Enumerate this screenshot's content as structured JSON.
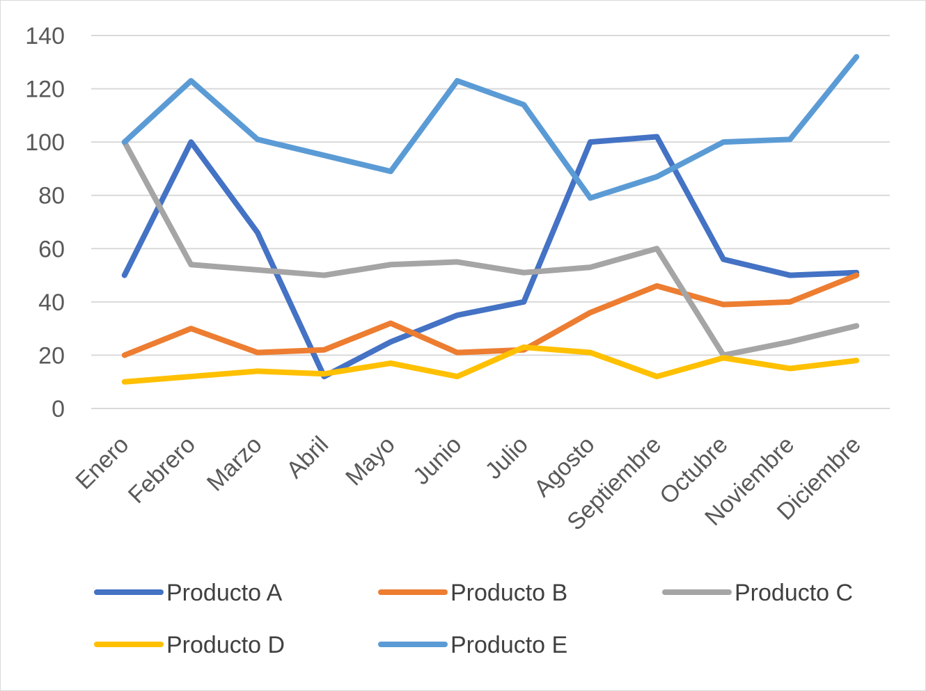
{
  "chart_data": {
    "type": "line",
    "title": "",
    "xlabel": "",
    "ylabel": "",
    "ylim": [
      0,
      140
    ],
    "yticks": [
      0,
      20,
      40,
      60,
      80,
      100,
      120,
      140
    ],
    "grid": true,
    "legend_position": "bottom",
    "categories": [
      "Enero",
      "Febrero",
      "Marzo",
      "Abril",
      "Mayo",
      "Junio",
      "Julio",
      "Agosto",
      "Septiembre",
      "Octubre",
      "Noviembre",
      "Diciembre"
    ],
    "series": [
      {
        "name": "Producto A",
        "color": "#4472C4",
        "values": [
          50,
          100,
          66,
          12,
          25,
          35,
          40,
          100,
          102,
          56,
          50,
          51
        ]
      },
      {
        "name": "Producto B",
        "color": "#ED7D31",
        "values": [
          20,
          30,
          21,
          22,
          32,
          21,
          22,
          36,
          46,
          39,
          40,
          50
        ]
      },
      {
        "name": "Producto C",
        "color": "#A5A5A5",
        "values": [
          100,
          54,
          52,
          50,
          54,
          55,
          51,
          53,
          60,
          20,
          25,
          31
        ]
      },
      {
        "name": "Producto D",
        "color": "#FFC000",
        "values": [
          10,
          12,
          14,
          13,
          17,
          12,
          23,
          21,
          12,
          19,
          15,
          18
        ]
      },
      {
        "name": "Producto E",
        "color": "#5B9BD5",
        "values": [
          100,
          123,
          101,
          95,
          89,
          123,
          114,
          79,
          87,
          100,
          101,
          132
        ]
      }
    ]
  }
}
